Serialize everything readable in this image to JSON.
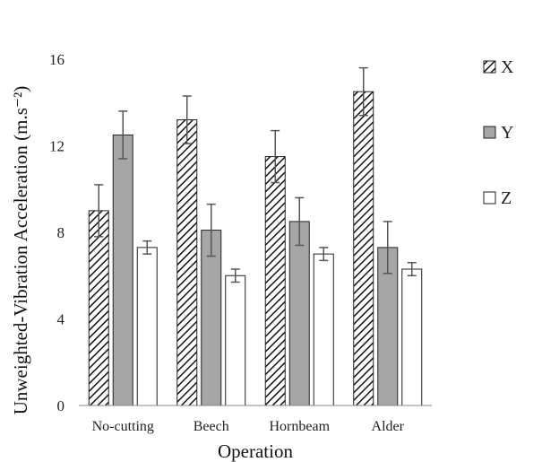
{
  "chart_data": {
    "type": "bar",
    "title": "",
    "xlabel": "Operation",
    "ylabel": "Unweighted-Vibration Acceleration (m.s⁻²)",
    "categories": [
      "No-cutting",
      "Beech",
      "Hornbeam",
      "Alder"
    ],
    "series": [
      {
        "name": "X",
        "pattern": "diagonal-hatch",
        "values": [
          9.0,
          13.2,
          11.5,
          14.5
        ],
        "errors": [
          1.2,
          1.1,
          1.2,
          1.1
        ]
      },
      {
        "name": "Y",
        "fill": "#a6a6a6",
        "values": [
          12.5,
          8.1,
          8.5,
          7.3
        ],
        "errors": [
          1.1,
          1.2,
          1.1,
          1.2
        ]
      },
      {
        "name": "Z",
        "fill": "#ffffff",
        "values": [
          7.3,
          6.0,
          7.0,
          6.3
        ],
        "errors": [
          0.3,
          0.3,
          0.3,
          0.3
        ]
      }
    ],
    "ylim": [
      0,
      16
    ],
    "yticks": [
      0,
      4,
      8,
      12,
      16
    ],
    "grid": false,
    "error_bars": true,
    "legend": "right"
  }
}
